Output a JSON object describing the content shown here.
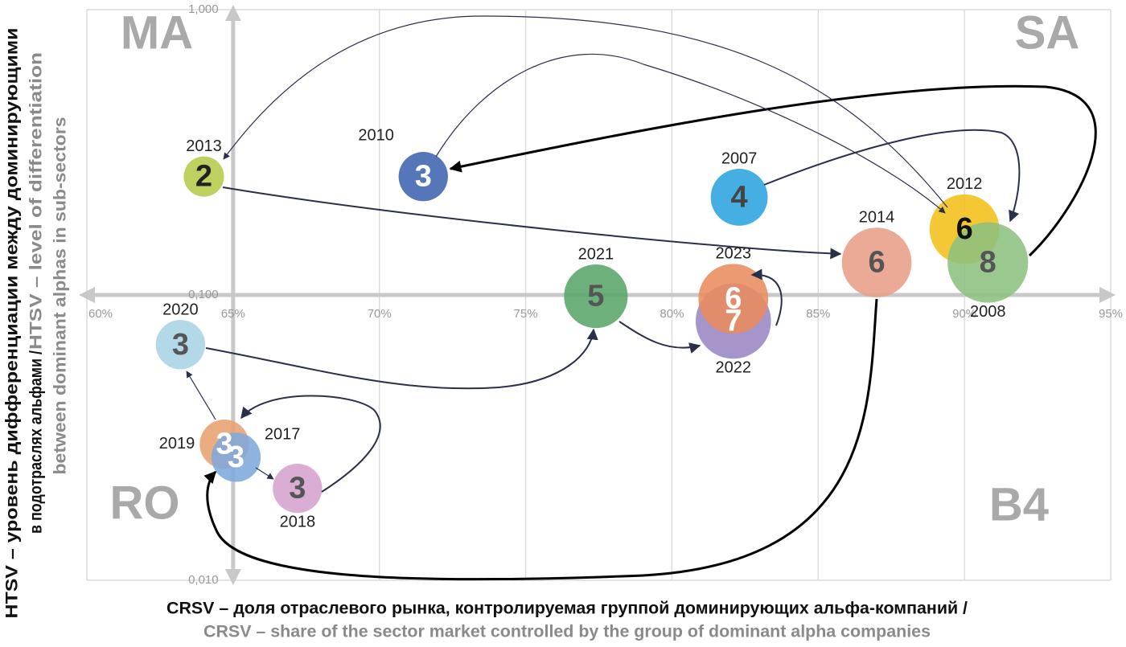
{
  "chart_data": {
    "type": "bubble",
    "xlim": [
      60,
      95
    ],
    "xticks": [
      {
        "value": 60,
        "label": "60%"
      },
      {
        "value": 65,
        "label": "65%"
      },
      {
        "value": 70,
        "label": "70%"
      },
      {
        "value": 75,
        "label": "75%"
      },
      {
        "value": 80,
        "label": "80%"
      },
      {
        "value": 85,
        "label": "85%"
      },
      {
        "value": 90,
        "label": "90%"
      },
      {
        "value": 95,
        "label": "95%"
      }
    ],
    "ylim": [
      0.01,
      1
    ],
    "yticks": [
      {
        "value": 0.01,
        "label": "0,010"
      },
      {
        "value": 0.1,
        "label": "0,100"
      },
      {
        "value": 1,
        "label": "1,000"
      }
    ],
    "y_scale": "log",
    "grid": true,
    "annotations": [
      "MA",
      "SA",
      "RO",
      "B4"
    ],
    "x_label": [
      "CRSV – доля отраслевого рынка, контролируемая группой доминирующих альфа-компаний /",
      "CRSV – share of the sector market controlled by the group of dominant alpha companies"
    ],
    "y_label": [
      "HTSV – уровень дифференциации между доминирующими",
      "в подотраслях альфами /",
      "HTSV – level of differentiation",
      "between dominant alphas in sub-sectors"
    ],
    "points": [
      {
        "label": "2007",
        "x": 82.3,
        "y": 0.22,
        "size": 4,
        "color": "#2ba3de",
        "text_color": "#444444",
        "label_side": "top"
      },
      {
        "label": "2012",
        "x": 90,
        "y": 0.17,
        "size": 6,
        "color": "#f2c018",
        "text_color": "#111111",
        "label_side": "top"
      },
      {
        "label": "2008",
        "x": 90.8,
        "y": 0.13,
        "size": 8,
        "color": "#8cc07f",
        "text_color": "#555555",
        "label_side": "bottom"
      },
      {
        "label": "2010",
        "x": 71.5,
        "y": 0.26,
        "size": 3,
        "color": "#3d63ae",
        "text_color": "#ffffff",
        "label_side": "top-left"
      },
      {
        "label": "2013",
        "x": 64,
        "y": 0.26,
        "size": 2,
        "color": "#b5c94a",
        "text_color": "#222222",
        "label_side": "top"
      },
      {
        "label": "2014",
        "x": 87,
        "y": 0.13,
        "size": 6,
        "color": "#e79e86",
        "text_color": "#555555",
        "label_side": "top"
      },
      {
        "label": "2021",
        "x": 77.4,
        "y": 0.099,
        "size": 5,
        "color": "#5aa56a",
        "text_color": "#555555",
        "label_side": "top"
      },
      {
        "label": "2022",
        "x": 82.1,
        "y": 0.081,
        "size": 7,
        "color": "#9a86c3",
        "text_color": "#ffffff",
        "label_side": "bottom"
      },
      {
        "label": "2023",
        "x": 82.1,
        "y": 0.097,
        "size": 6,
        "color": "#e98c5f",
        "text_color": "#ffffff",
        "label_side": "top"
      },
      {
        "label": "2020",
        "x": 63.2,
        "y": 0.067,
        "size": 3,
        "color": "#a8d3e4",
        "text_color": "#555555",
        "label_side": "top"
      },
      {
        "label": "2019",
        "x": 64.7,
        "y": 0.03,
        "size": 3,
        "color": "#e8a070",
        "text_color": "#ffffff",
        "label_side": "left"
      },
      {
        "label": "2017",
        "x": 65.1,
        "y": 0.027,
        "size": 3,
        "color": "#7fa9dc",
        "text_color": "#ffffff",
        "label_side": "top-right"
      },
      {
        "label": "2018",
        "x": 67.2,
        "y": 0.021,
        "size": 3,
        "color": "#d5a2cf",
        "text_color": "#555555",
        "label_side": "bottom"
      }
    ]
  }
}
